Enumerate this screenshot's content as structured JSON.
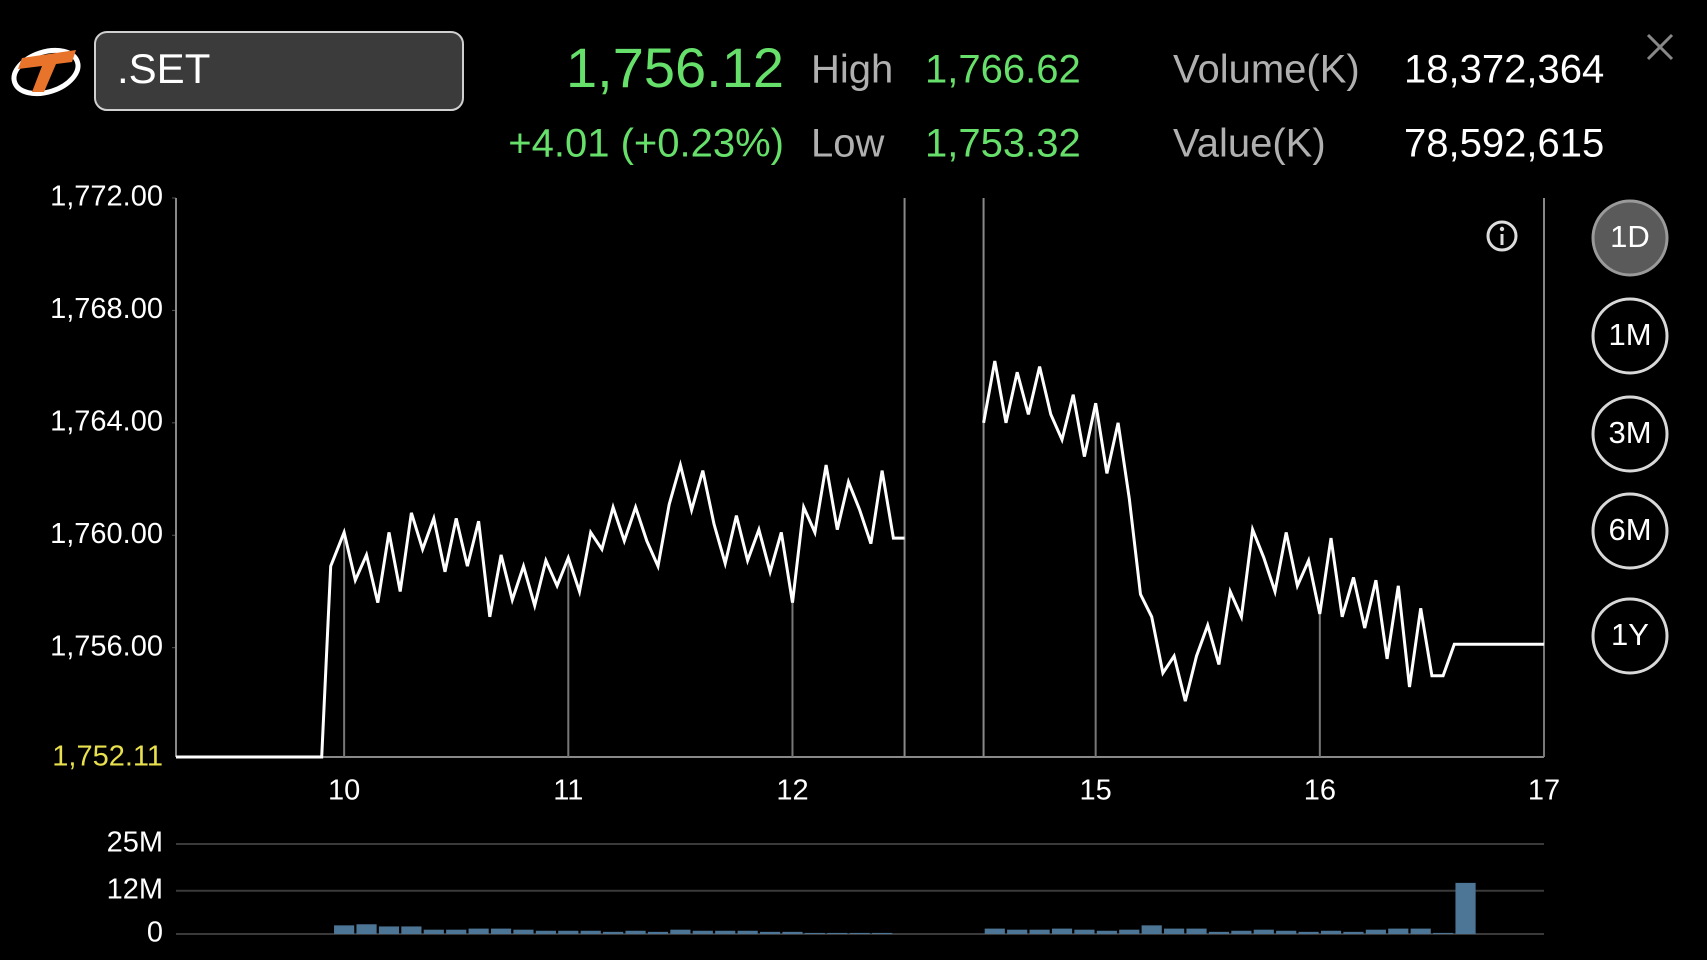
{
  "header": {
    "symbol": ".SET",
    "last": "1,756.12",
    "change": "+4.01 (+0.23%)",
    "stats": [
      {
        "label": "High",
        "value": "1,766.62"
      },
      {
        "label": "Low",
        "value": "1,753.32"
      },
      {
        "label": "Volume(K)",
        "value": "18,372,364"
      },
      {
        "label": "Value(K)",
        "value": "78,592,615"
      }
    ]
  },
  "periods": {
    "options": [
      "1D",
      "1M",
      "3M",
      "6M",
      "1Y"
    ],
    "selected": "1D"
  },
  "chart_data": [
    {
      "type": "line",
      "color": "#ffffff",
      "x": [
        9.25,
        9.9,
        9.94,
        10.0,
        10.05,
        10.1,
        10.15,
        10.2,
        10.25,
        10.3,
        10.35,
        10.4,
        10.45,
        10.5,
        10.55,
        10.6,
        10.65,
        10.7,
        10.75,
        10.8,
        10.85,
        10.9,
        10.95,
        11.0,
        11.05,
        11.1,
        11.15,
        11.2,
        11.25,
        11.3,
        11.35,
        11.4,
        11.45,
        11.5,
        11.55,
        11.6,
        11.65,
        11.7,
        11.75,
        11.8,
        11.85,
        11.9,
        11.95,
        12.0,
        12.05,
        12.1,
        12.15,
        12.2,
        12.25,
        12.3,
        12.35,
        12.4,
        12.45,
        12.5,
        14.5,
        14.55,
        14.6,
        14.65,
        14.7,
        14.75,
        14.8,
        14.85,
        14.9,
        14.95,
        15.0,
        15.05,
        15.1,
        15.15,
        15.2,
        15.25,
        15.3,
        15.35,
        15.4,
        15.45,
        15.5,
        15.55,
        15.6,
        15.65,
        15.7,
        15.75,
        15.8,
        15.85,
        15.9,
        15.95,
        16.0,
        16.05,
        16.1,
        16.15,
        16.2,
        16.25,
        16.3,
        16.35,
        16.4,
        16.45,
        16.5,
        16.55,
        16.6,
        17.0
      ],
      "values": [
        1752.11,
        1752.11,
        1758.9,
        1760.1,
        1758.4,
        1759.3,
        1757.6,
        1760.1,
        1758.0,
        1760.8,
        1759.5,
        1760.6,
        1758.7,
        1760.6,
        1758.9,
        1760.5,
        1757.1,
        1759.3,
        1757.7,
        1758.9,
        1757.5,
        1759.1,
        1758.2,
        1759.2,
        1758.0,
        1760.1,
        1759.5,
        1761.0,
        1759.8,
        1761.0,
        1759.8,
        1758.9,
        1761.1,
        1762.5,
        1760.9,
        1762.3,
        1760.4,
        1759.0,
        1760.7,
        1759.1,
        1760.2,
        1758.7,
        1760.1,
        1757.6,
        1761.0,
        1760.1,
        1762.5,
        1760.2,
        1761.9,
        1760.9,
        1759.7,
        1762.3,
        1759.9,
        1759.9,
        1764.0,
        1766.2,
        1764.0,
        1765.8,
        1764.3,
        1766.0,
        1764.3,
        1763.4,
        1765.0,
        1762.8,
        1764.7,
        1762.2,
        1764.0,
        1761.3,
        1757.9,
        1757.1,
        1755.1,
        1755.7,
        1754.1,
        1755.7,
        1756.8,
        1755.4,
        1758.0,
        1757.1,
        1760.2,
        1759.2,
        1758.0,
        1760.1,
        1758.2,
        1759.1,
        1757.2,
        1759.9,
        1757.1,
        1758.5,
        1756.7,
        1758.4,
        1755.6,
        1758.2,
        1754.6,
        1757.4,
        1755.0,
        1755.0,
        1756.12,
        1756.12
      ],
      "xlim": [
        9.25,
        17
      ],
      "xticks": [
        10,
        11,
        12,
        15,
        16,
        17
      ],
      "x_breaks": [
        [
          12.5,
          14.5
        ]
      ],
      "ylim": [
        1752.11,
        1772
      ],
      "yticks": [
        {
          "value": 1756,
          "label": "1,756.00"
        },
        {
          "value": 1760,
          "label": "1,760.00"
        },
        {
          "value": 1764,
          "label": "1,764.00"
        },
        {
          "value": 1768,
          "label": "1,768.00"
        },
        {
          "value": 1772,
          "label": "1,772.00"
        }
      ],
      "reference_line": {
        "value": 1752.11,
        "label": "1,752.11",
        "color": "#e8e04c"
      }
    },
    {
      "type": "bar",
      "color": "#4d7595",
      "grid": true,
      "x": [
        10.0,
        10.1,
        10.2,
        10.3,
        10.4,
        10.5,
        10.6,
        10.7,
        10.8,
        10.9,
        11.0,
        11.1,
        11.2,
        11.3,
        11.4,
        11.5,
        11.6,
        11.7,
        11.8,
        11.9,
        12.0,
        12.1,
        12.2,
        12.3,
        12.4,
        14.55,
        14.65,
        14.75,
        14.85,
        14.95,
        15.05,
        15.15,
        15.25,
        15.35,
        15.45,
        15.55,
        15.65,
        15.75,
        15.85,
        15.95,
        16.05,
        16.15,
        16.25,
        16.35,
        16.45,
        16.55,
        16.65
      ],
      "values": [
        2400000,
        2700000,
        2100000,
        2100000,
        1200000,
        1200000,
        1500000,
        1500000,
        1200000,
        900000,
        900000,
        900000,
        600000,
        900000,
        600000,
        1200000,
        900000,
        900000,
        900000,
        600000,
        600000,
        300000,
        300000,
        300000,
        300000,
        1500000,
        1200000,
        1200000,
        1500000,
        1200000,
        900000,
        1200000,
        2400000,
        1500000,
        1500000,
        600000,
        900000,
        1200000,
        900000,
        600000,
        900000,
        600000,
        1200000,
        1500000,
        1500000,
        300000,
        14200000
      ],
      "xlim": [
        9.25,
        17
      ],
      "x_breaks": [
        [
          12.5,
          14.5
        ]
      ],
      "ylim": [
        0,
        25000000
      ],
      "yticks": [
        0,
        {
          "value": 12000000,
          "label": "12M"
        },
        {
          "value": 25000000,
          "label": "25M"
        }
      ]
    }
  ]
}
